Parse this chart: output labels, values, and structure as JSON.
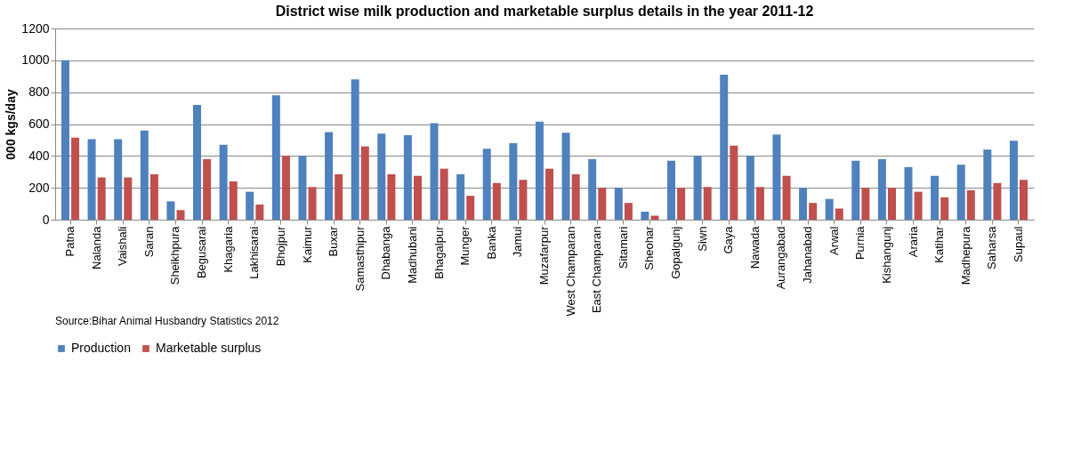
{
  "chart_data": {
    "type": "bar",
    "title": "District wise milk production  and marketable surplus details in the year 2011-12",
    "ylabel": "000 kgs/day",
    "categories": [
      "Patna",
      "Nalanda",
      "Vaishali",
      "Saran",
      "Sheikhpura",
      "Begusarai",
      "Khagaria",
      "Lakhisarai",
      "Bhojpur",
      "Kaimur",
      "Buxar",
      "Samasthipur",
      "Dhabanga",
      "Madhubani",
      "Bhagalpur",
      "Munger",
      "Banka",
      "Jamui",
      "Muzafarpur",
      "West Champaran",
      "East Champaran",
      "Sitamari",
      "Sheohar",
      "Gopalgunj",
      "Siwn",
      "Gaya",
      "Nawada",
      "Aurangabad",
      "Jahanabad",
      "Arwal",
      "Purnia",
      "Kishangunj",
      "Araria",
      "Katihar",
      "Madhepura",
      "Saharsa",
      "Supaul"
    ],
    "series": [
      {
        "name": "Production",
        "color": "#4f81bd",
        "values": [
          1000,
          505,
          505,
          560,
          115,
          720,
          470,
          175,
          780,
          400,
          550,
          880,
          540,
          530,
          605,
          285,
          445,
          480,
          615,
          545,
          380,
          200,
          50,
          370,
          400,
          910,
          400,
          535,
          200,
          130,
          370,
          380,
          330,
          275,
          345,
          440,
          495
        ]
      },
      {
        "name": "Marketable surplus",
        "color": "#c0504d",
        "values": [
          515,
          265,
          265,
          285,
          60,
          380,
          240,
          95,
          400,
          205,
          285,
          460,
          285,
          275,
          320,
          150,
          230,
          250,
          320,
          285,
          200,
          105,
          25,
          200,
          205,
          465,
          205,
          275,
          105,
          70,
          200,
          200,
          175,
          140,
          185,
          230,
          250
        ]
      }
    ],
    "ylim": [
      0,
      1200
    ],
    "yticks": [
      0,
      200,
      400,
      600,
      800,
      1000,
      1200
    ],
    "grid": "y",
    "legend": "bottom",
    "annotations": [
      "Source:Bihar Animal Husbandry Statistics 2012"
    ]
  }
}
